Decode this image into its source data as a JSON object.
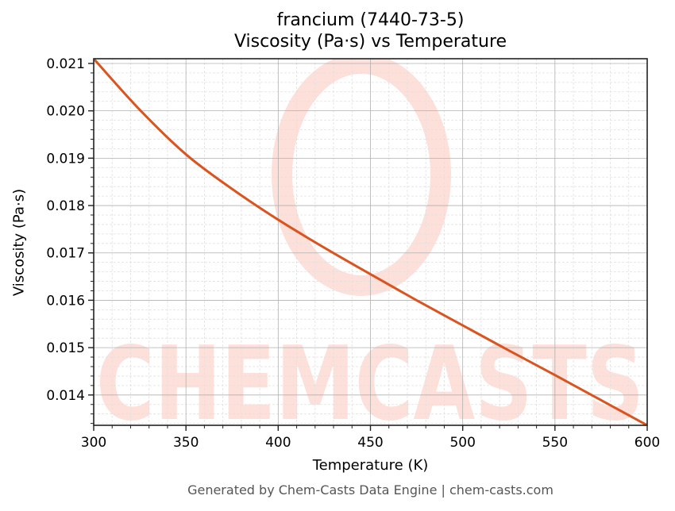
{
  "title": {
    "line1": "francium (7440-73-5)",
    "line2": "Viscosity (Pa·s) vs Temperature"
  },
  "axes": {
    "xlabel": "Temperature (K)",
    "ylabel": "Viscosity (Pa·s)",
    "xticks": [
      "300",
      "350",
      "400",
      "450",
      "500",
      "550",
      "600"
    ],
    "yticks": [
      "0.014",
      "0.015",
      "0.016",
      "0.017",
      "0.018",
      "0.019",
      "0.020",
      "0.021"
    ]
  },
  "watermark": {
    "text": "CHEMCASTS",
    "color": "#fde0da"
  },
  "footer": "Generated by Chem-Casts Data Engine | chem-casts.com",
  "colors": {
    "line": "#d9541e",
    "grid_major": "#b0b0b0",
    "grid_minor": "#e0e0e0"
  },
  "chart_data": {
    "type": "line",
    "title": "francium (7440-73-5) Viscosity (Pa·s) vs Temperature",
    "xlabel": "Temperature (K)",
    "ylabel": "Viscosity (Pa·s)",
    "xlim": [
      300,
      600
    ],
    "ylim": [
      0.01336,
      0.0211
    ],
    "grid": true,
    "legend": null,
    "series": [
      {
        "name": "Viscosity",
        "x": [
          300,
          325,
          350,
          375,
          400,
          425,
          450,
          475,
          500,
          525,
          550,
          575,
          600
        ],
        "values": [
          0.0211,
          0.02002,
          0.01908,
          0.01835,
          0.0177,
          0.01711,
          0.01655,
          0.016,
          0.01547,
          0.01494,
          0.01442,
          0.01389,
          0.01336
        ]
      }
    ]
  }
}
